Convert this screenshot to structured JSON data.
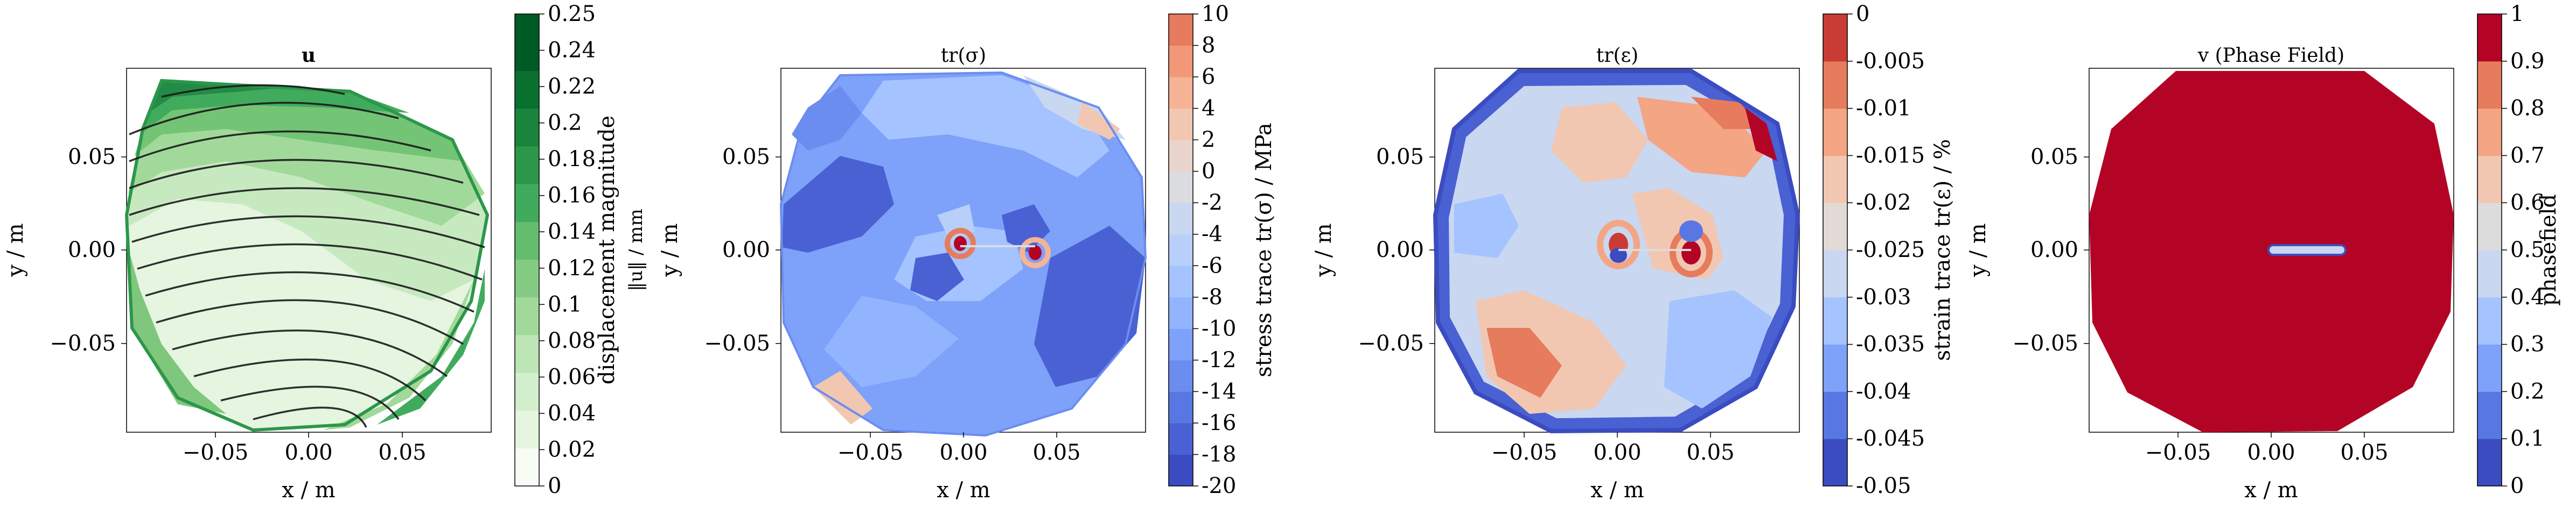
{
  "chart_data": [
    {
      "type": "contour",
      "title": "u",
      "xlabel": "x / m",
      "ylabel": "y / m",
      "xticks": [
        "−0.05",
        "0.00",
        "0.05"
      ],
      "yticks": [
        "0.05",
        "0.00",
        "−0.05"
      ],
      "xlim": [
        -0.1,
        0.1
      ],
      "ylim": [
        -0.1,
        0.1
      ],
      "colorbar": {
        "label": "displacement magnitude",
        "sublabel": "‖u‖ / mm",
        "levels": [
          0,
          0.02,
          0.04,
          0.06,
          0.08,
          0.1,
          0.12,
          0.14,
          0.16,
          0.18,
          0.2,
          0.22,
          0.25
        ],
        "ticks": [
          "0.25",
          "0.24",
          "0.22",
          "0.2",
          "0.18",
          "0.16",
          "0.14",
          "0.12",
          "0.1",
          "0.08",
          "0.06",
          "0.04",
          "0.02",
          "0"
        ],
        "colors": [
          "#f7fcf5",
          "#e5f5e0",
          "#d3eecd",
          "#bde5b6",
          "#a1d99b",
          "#84cc83",
          "#64bc6e",
          "#41ab5d",
          "#2c974a",
          "#19843b",
          "#0a7030",
          "#005a24",
          "#00441b"
        ]
      },
      "overlay": "quiver arrows (displacement direction)"
    },
    {
      "type": "contour",
      "title": "tr(σ)",
      "xlabel": "x / m",
      "ylabel": "y / m",
      "xticks": [
        "−0.05",
        "0.00",
        "0.05"
      ],
      "yticks": [
        "0.05",
        "0.00",
        "−0.05"
      ],
      "xlim": [
        -0.1,
        0.1
      ],
      "ylim": [
        -0.1,
        0.1
      ],
      "colorbar": {
        "label": "stress trace tr(σ) / MPa",
        "levels": [
          -20,
          -18,
          -16,
          -14,
          -12,
          -10,
          -8,
          -6,
          -4,
          -2,
          0,
          2,
          4,
          6,
          8,
          10
        ],
        "ticks": [
          "10",
          "8",
          "6",
          "4",
          "2",
          "0",
          "-2",
          "-4",
          "-6",
          "-8",
          "-10",
          "-12",
          "-14",
          "-16",
          "-18",
          "-20"
        ],
        "colors": [
          "#3b4cc0",
          "#4961d2",
          "#5977e3",
          "#6b8df0",
          "#7ea1fa",
          "#92b4fe",
          "#a5c3fe",
          "#b7cff9",
          "#c9d7f0",
          "#dadce0",
          "#e9d5cb",
          "#f2c7b1",
          "#f6b396",
          "#f29878",
          "#e67b5d",
          "#d55042",
          "#b40426"
        ]
      }
    },
    {
      "type": "contour",
      "title": "tr(ε)",
      "xlabel": "x / m",
      "ylabel": "y / m",
      "xticks": [
        "−0.05",
        "0.00",
        "0.05"
      ],
      "yticks": [
        "0.05",
        "0.00",
        "−0.05"
      ],
      "xlim": [
        -0.1,
        0.1
      ],
      "ylim": [
        -0.1,
        0.1
      ],
      "colorbar": {
        "label": "strain trace tr(ε) / %",
        "levels": [
          -0.05,
          -0.045,
          -0.04,
          -0.035,
          -0.03,
          -0.025,
          -0.02,
          -0.015,
          -0.01,
          -0.005,
          0
        ],
        "ticks": [
          "0",
          "-0.005",
          "-0.01",
          "-0.015",
          "-0.02",
          "-0.025",
          "-0.03",
          "-0.035",
          "-0.04",
          "-0.045",
          "-0.05"
        ],
        "colors": [
          "#3b4cc0",
          "#5977e3",
          "#7ea1fa",
          "#a5c3fe",
          "#c9d7f0",
          "#e2dad6",
          "#f2c7b1",
          "#f4a584",
          "#e67b5d",
          "#c83c35",
          "#b40426"
        ]
      }
    },
    {
      "type": "contour",
      "title": "v (Phase Field)",
      "xlabel": "x / m",
      "ylabel": "y / m",
      "xticks": [
        "−0.05",
        "0.00",
        "0.05"
      ],
      "yticks": [
        "0.05",
        "0.00",
        "−0.05"
      ],
      "xlim": [
        -0.1,
        0.1
      ],
      "ylim": [
        -0.1,
        0.1
      ],
      "colorbar": {
        "label": "phasefield",
        "levels": [
          0,
          0.1,
          0.2,
          0.3,
          0.4,
          0.5,
          0.6,
          0.7,
          0.8,
          0.9,
          1
        ],
        "ticks": [
          "1",
          "0.9",
          "0.8",
          "0.7",
          "0.6",
          "0.5",
          "0.4",
          "0.3",
          "0.2",
          "0.1",
          "0"
        ],
        "colors": [
          "#3b4cc0",
          "#5977e3",
          "#7ea1fa",
          "#a5c3fe",
          "#c9d7f0",
          "#dddcdc",
          "#f2c7b1",
          "#f4a584",
          "#e67b5d",
          "#b40426"
        ]
      },
      "crack": {
        "x_start": 0.0,
        "x_end": 0.04,
        "y": 0.0
      }
    }
  ]
}
